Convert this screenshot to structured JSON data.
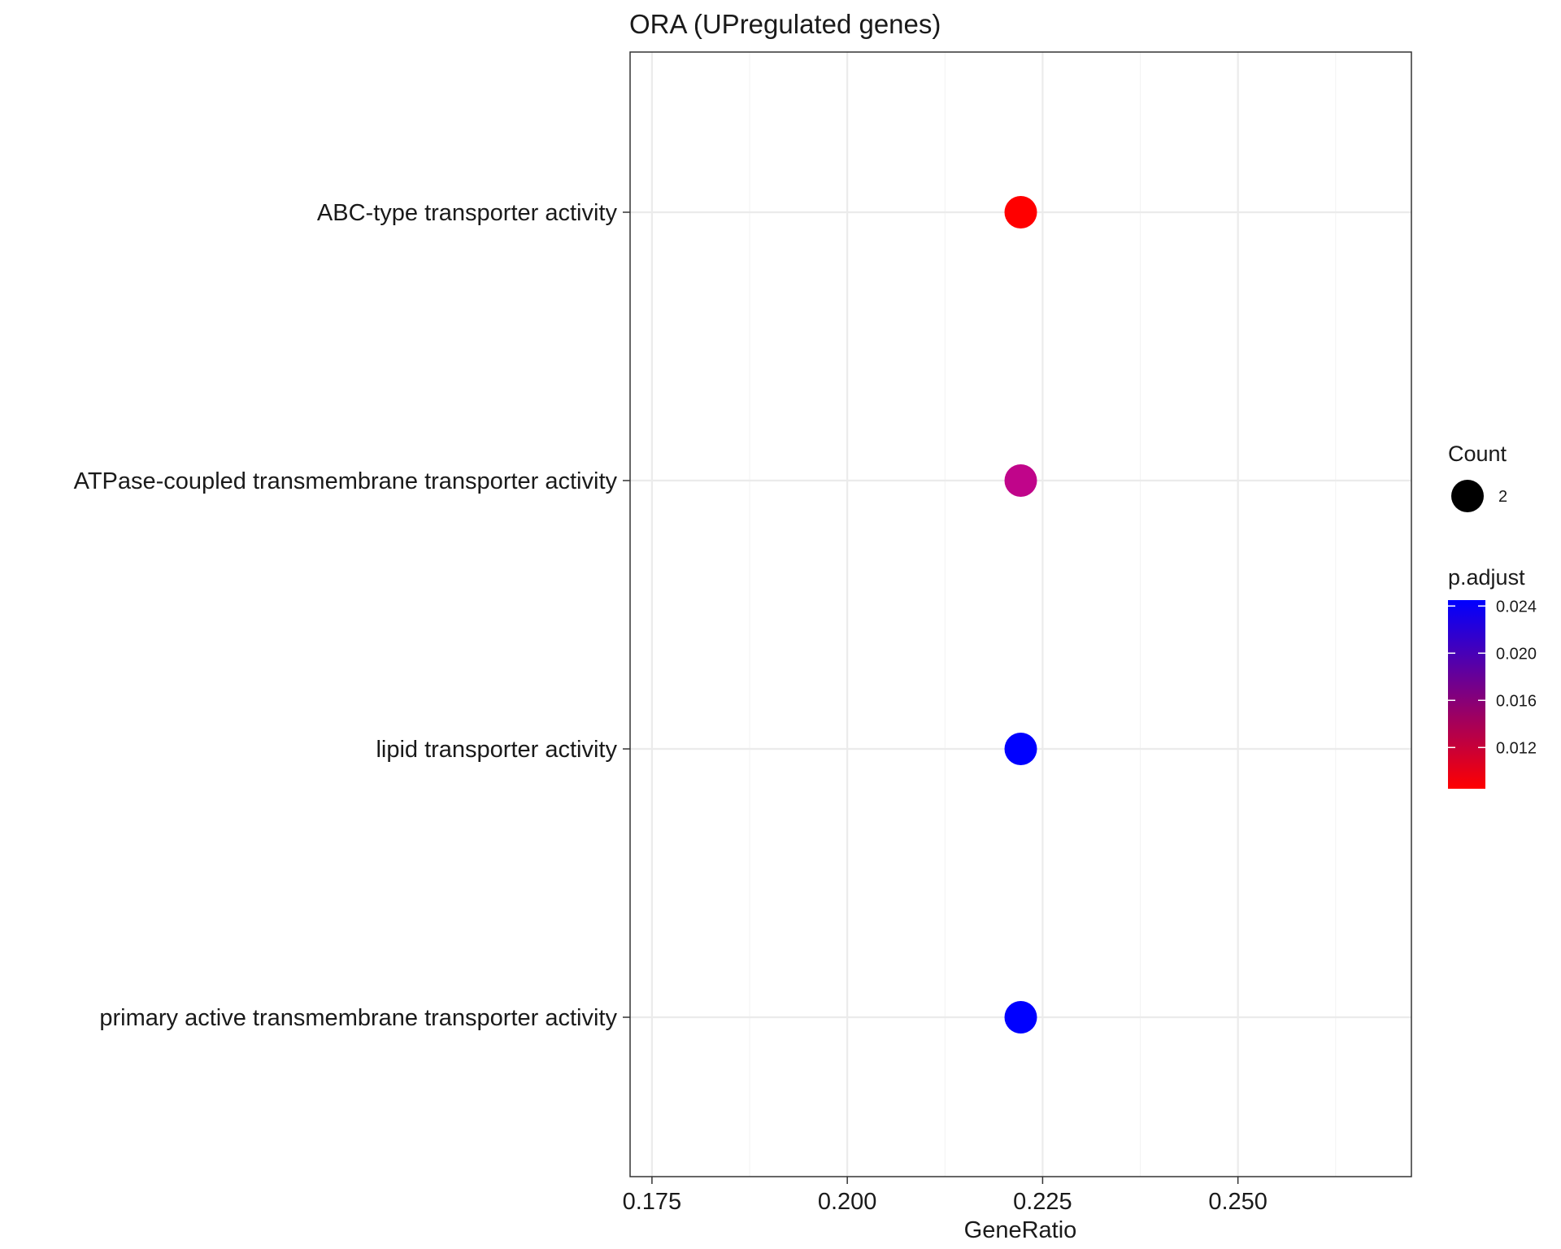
{
  "chart_data": {
    "type": "scatter",
    "title": "ORA (UPregulated genes)",
    "xlabel": "GeneRatio",
    "ylabel": "",
    "xlim": [
      0.1722,
      0.2722
    ],
    "x_ticks": [
      "0.175",
      "0.200",
      "0.225",
      "0.250"
    ],
    "categories": [
      "ABC-type transporter activity",
      "ATPase-coupled transmembrane transporter activity",
      "lipid transporter activity",
      "primary active transmembrane transporter activity"
    ],
    "points": [
      {
        "category": "ABC-type transporter activity",
        "x": 0.2222,
        "count": 2,
        "p_adjust": 0.0085,
        "color": "#ff0000"
      },
      {
        "category": "ATPase-coupled transmembrane transporter activity",
        "x": 0.2222,
        "count": 2,
        "p_adjust": 0.0175,
        "color": "#c0058a"
      },
      {
        "category": "lipid transporter activity",
        "x": 0.2222,
        "count": 2,
        "p_adjust": 0.0245,
        "color": "#0000ff"
      },
      {
        "category": "primary active transmembrane transporter activity",
        "x": 0.2222,
        "count": 2,
        "p_adjust": 0.0245,
        "color": "#0000ff"
      }
    ],
    "grid": true,
    "legend": {
      "placement": "right",
      "size_title": "Count",
      "size_entries": [
        {
          "label": "2",
          "value": 2
        }
      ],
      "color_title": "p.adjust",
      "color_ticks": [
        "0.024",
        "0.020",
        "0.016",
        "0.012"
      ],
      "color_tick_values": [
        0.024,
        0.02,
        0.016,
        0.012
      ],
      "color_range": [
        0.0085,
        0.0245
      ],
      "color_low": "#ff0000",
      "color_high": "#0000ff"
    }
  }
}
